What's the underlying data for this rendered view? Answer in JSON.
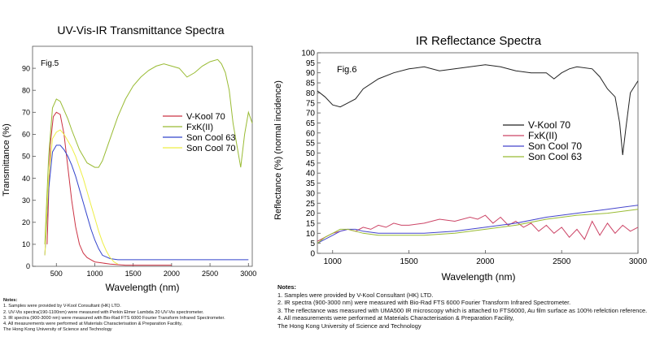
{
  "chart_data": [
    {
      "type": "line",
      "title": "UV-Vis-IR Transmittance Spectra",
      "fig_label": "Fig.5",
      "xlabel": "Wavelength (nm)",
      "ylabel": "Transmittance (%)",
      "xlim": [
        190,
        3050
      ],
      "ylim": [
        0,
        100
      ],
      "xticks": [
        500,
        1000,
        1500,
        2000,
        2500,
        3000
      ],
      "yticks": [
        0,
        10,
        20,
        30,
        40,
        50,
        60,
        70,
        80,
        90
      ],
      "grid": false,
      "legend_position": "center-right",
      "series": [
        {
          "name": "V-Kool 70",
          "color": "#cc3344",
          "x": [
            380,
            420,
            460,
            500,
            550,
            600,
            650,
            700,
            750,
            800,
            850,
            900,
            950,
            1000,
            1100,
            1200,
            1400,
            2000
          ],
          "y": [
            10,
            55,
            68,
            70,
            69,
            60,
            45,
            30,
            18,
            10,
            6,
            4,
            3,
            2,
            1.5,
            1,
            0.5,
            0.5
          ]
        },
        {
          "name": "FxK(II)",
          "color": "#99bb33",
          "x": [
            350,
            400,
            450,
            500,
            550,
            600,
            650,
            700,
            800,
            900,
            1000,
            1050,
            1100,
            1150,
            1200,
            1300,
            1400,
            1500,
            1600,
            1700,
            1800,
            1900,
            2000,
            2100,
            2200,
            2300,
            2400,
            2500,
            2600,
            2650,
            2700,
            2750,
            2800,
            2850,
            2900,
            2950,
            3000,
            3050
          ],
          "y": [
            10,
            50,
            72,
            76,
            75,
            71,
            67,
            62,
            53,
            47,
            45,
            45,
            48,
            53,
            58,
            68,
            76,
            82,
            86,
            89,
            91,
            92,
            91,
            90,
            86,
            88,
            91,
            93,
            94,
            92,
            88,
            80,
            65,
            55,
            45,
            60,
            70,
            65
          ]
        },
        {
          "name": "Son Cool 63",
          "color": "#3344cc",
          "x": [
            350,
            400,
            450,
            500,
            550,
            600,
            650,
            700,
            750,
            800,
            850,
            900,
            950,
            1000,
            1050,
            1100,
            1200,
            1300,
            1500,
            2000,
            2500,
            3000
          ],
          "y": [
            5,
            35,
            52,
            55,
            55,
            53,
            50,
            46,
            41,
            35,
            29,
            23,
            17,
            12,
            8,
            5,
            3.5,
            3,
            3,
            3,
            3,
            3
          ]
        },
        {
          "name": "Son Cool 70",
          "color": "#eeee44",
          "x": [
            350,
            400,
            450,
            500,
            550,
            600,
            650,
            700,
            750,
            800,
            850,
            900,
            950,
            1000,
            1050,
            1100,
            1150,
            1200,
            1250,
            1300
          ],
          "y": [
            5,
            40,
            58,
            61,
            62,
            60,
            57,
            54,
            50,
            45,
            40,
            34,
            28,
            22,
            16,
            11,
            7,
            4,
            2,
            1
          ]
        }
      ]
    },
    {
      "type": "line",
      "title": "IR Reflectance Spectra",
      "fig_label": "Fig.6",
      "xlabel": "Wavelength (nm)",
      "ylabel": "Reflectance (%) (normal incidence)",
      "xlim": [
        900,
        3000
      ],
      "ylim": [
        0,
        100
      ],
      "xticks": [
        1000,
        1500,
        2000,
        2500,
        3000
      ],
      "yticks": [
        0,
        5,
        10,
        15,
        20,
        25,
        30,
        35,
        40,
        45,
        50,
        55,
        60,
        65,
        70,
        75,
        80,
        85,
        90,
        95,
        100
      ],
      "grid": false,
      "legend_position": "upper-middle",
      "series": [
        {
          "name": "V-Kool 70",
          "color": "#222222",
          "x": [
            900,
            950,
            1000,
            1050,
            1100,
            1150,
            1200,
            1300,
            1400,
            1500,
            1600,
            1700,
            1800,
            1900,
            2000,
            2100,
            2200,
            2300,
            2400,
            2450,
            2500,
            2550,
            2600,
            2700,
            2750,
            2800,
            2850,
            2880,
            2900,
            2920,
            2950,
            3000
          ],
          "y": [
            81,
            78,
            74,
            73,
            75,
            77,
            82,
            87,
            90,
            92,
            93,
            91,
            92,
            93,
            94,
            93,
            91,
            90,
            90,
            87,
            90,
            92,
            93,
            92,
            88,
            82,
            78,
            65,
            49,
            62,
            80,
            86
          ]
        },
        {
          "name": "FxK(II)",
          "color": "#cc4466",
          "x": [
            900,
            950,
            1000,
            1050,
            1100,
            1150,
            1200,
            1250,
            1300,
            1350,
            1400,
            1450,
            1500,
            1600,
            1700,
            1800,
            1900,
            1950,
            2000,
            2050,
            2100,
            2150,
            2200,
            2250,
            2300,
            2350,
            2400,
            2450,
            2500,
            2550,
            2600,
            2650,
            2700,
            2750,
            2800,
            2850,
            2900,
            2950,
            3000
          ],
          "y": [
            6,
            8,
            10,
            11,
            12,
            11,
            13,
            12,
            14,
            13,
            15,
            14,
            14,
            15,
            17,
            16,
            18,
            17,
            19,
            15,
            18,
            14,
            16,
            13,
            15,
            11,
            14,
            10,
            13,
            8,
            12,
            7,
            16,
            9,
            15,
            10,
            14,
            11,
            13
          ]
        },
        {
          "name": "Son Cool 70",
          "color": "#4444cc",
          "x": [
            900,
            950,
            1000,
            1050,
            1100,
            1150,
            1200,
            1300,
            1400,
            1500,
            1600,
            1800,
            2000,
            2200,
            2400,
            2600,
            2800,
            3000
          ],
          "y": [
            5,
            7,
            9,
            11,
            12,
            12,
            11,
            10,
            10,
            10,
            10,
            11,
            13,
            15,
            18,
            20,
            22,
            24
          ]
        },
        {
          "name": "Son Cool 63",
          "color": "#99bb33",
          "x": [
            900,
            950,
            1000,
            1050,
            1100,
            1150,
            1200,
            1300,
            1400,
            1500,
            1600,
            1800,
            2000,
            2200,
            2400,
            2600,
            2800,
            3000
          ],
          "y": [
            5,
            8,
            10,
            12,
            12,
            11,
            10,
            9,
            9,
            9,
            9,
            10,
            12,
            14,
            17,
            19,
            20,
            22
          ]
        }
      ]
    }
  ],
  "notes_left": {
    "header": "Notes:",
    "lines": [
      "1. Samples were provided by V-Kool Consultant (HK) LTD.",
      "2. UV-Vis spectra(190-1100nm) were measured with Perkin Elmer Lambda 20 UV-Vis spectrometer.",
      "3. IR spectra (900-3000 nm) were measured with Bio-Rad FTS 6000 Fourier Transform Infrared Spectrometer.",
      "4. All measurements were performed at Materials Characterisation & Preparation Facility,",
      "   The Hong Kong University of Science and Technology"
    ]
  },
  "notes_right": {
    "header": "Notes:",
    "lines": [
      "1. Samples were provided by V-Kool Consultant (HK) LTD.",
      "2. IR spectra (900-3000 nm) were measured with Bio-Rad FTS 6000 Fourier Transform Infrared Spectrometer.",
      "3. The reflectance was measured with UMA500 IR microscopy which is attached to FTS6000, Au film surface as 100% refelction reference.",
      "4. All measurements were performed at Materials Characterisation & Preparation Facility,",
      "   The Hong Kong University of Science and Technology"
    ]
  }
}
